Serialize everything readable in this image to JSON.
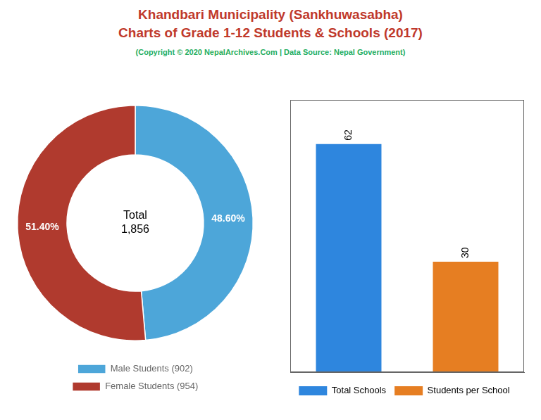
{
  "title": [
    "Khandbari Municipality (Sankhuwasabha)",
    "Charts of Grade 1-12 Students & Schools (2017)"
  ],
  "subtitle": "(Copyright © 2020 NepalArchives.Com | Data Source: Nepal Government)",
  "chart_data": [
    {
      "type": "doughnut",
      "categories": [
        "Male Students (902)",
        "Female Students (954)"
      ],
      "values": [
        48.6,
        51.4
      ],
      "value_labels": [
        "48.60%",
        "51.40%"
      ],
      "colors": [
        "#4da6d9",
        "#b03a2e"
      ],
      "annotations": [
        "Total",
        "1,856"
      ],
      "data_labels": true,
      "legend": "bottom"
    },
    {
      "type": "bar",
      "categories": [
        "Total Schools",
        "Students per School"
      ],
      "values": [
        62,
        30
      ],
      "colors": [
        "#2e86de",
        "#e67e22"
      ],
      "ylim": [
        0,
        74
      ],
      "data_labels": true,
      "tick_labels": false,
      "grid": false,
      "legend": "bottom"
    }
  ]
}
